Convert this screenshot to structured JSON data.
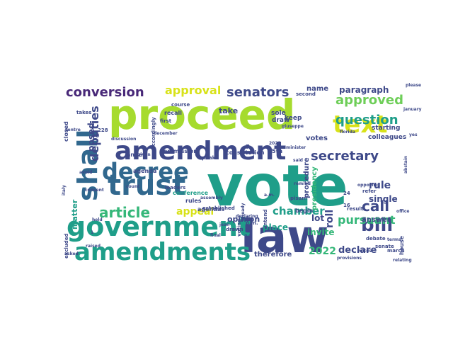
{
  "palette": {
    "lime": "#a6db2e",
    "yellow": "#d8e219",
    "green": "#35b779",
    "teal": "#1f9e89",
    "blue": "#31688e",
    "slate": "#3e4989",
    "navy": "#482878",
    "bright_green": "#6ece58"
  },
  "cloud": {
    "words": [
      "proceed",
      "vote",
      "law",
      "amendment",
      "trust",
      "text",
      "government",
      "amendments",
      "shall",
      "decree",
      "article",
      "bill",
      "conversion",
      "senators",
      "approved",
      "question",
      "secretary",
      "deputies",
      "approval",
      "call",
      "pursuant",
      "chamber",
      "appeal",
      "rule",
      "single",
      "paragraph",
      "roll",
      "invite",
      "lot",
      "place",
      "opinion",
      "answer",
      "declare",
      "therefore",
      "2022",
      "posed",
      "matter",
      "name",
      "take",
      "votes",
      "procedure",
      "colleagues",
      "presidency",
      "starting",
      "keep",
      "draw",
      "sole",
      "constitution",
      "5th",
      "agenda",
      "commission",
      "annex",
      "conference",
      "rules",
      "leaders",
      "agendas",
      "intend",
      "pisani",
      "p.m.",
      "a.m.",
      "drawn",
      "senate",
      "house",
      "debate",
      "result",
      "refer",
      "march",
      "terms",
      "begin",
      "raised",
      "recall",
      "course",
      "first",
      "closed",
      "takes",
      "second",
      "accordingly",
      "30",
      "228",
      "24",
      "2021",
      "1",
      "7",
      "94",
      "16",
      "giuseppe",
      "excluded",
      "speak",
      "established",
      "given",
      "declaring",
      "opposing",
      "abstain",
      "yes",
      "please",
      "notes",
      "provisions",
      "relating",
      "voting",
      "jean",
      "count",
      "avoid",
      "centre",
      "january",
      "florida",
      "december",
      "assembly",
      "asked",
      "discussion",
      "already",
      "remind",
      "said",
      "consent",
      "italy",
      "minister",
      "held",
      "final",
      "office",
      "session"
    ]
  }
}
